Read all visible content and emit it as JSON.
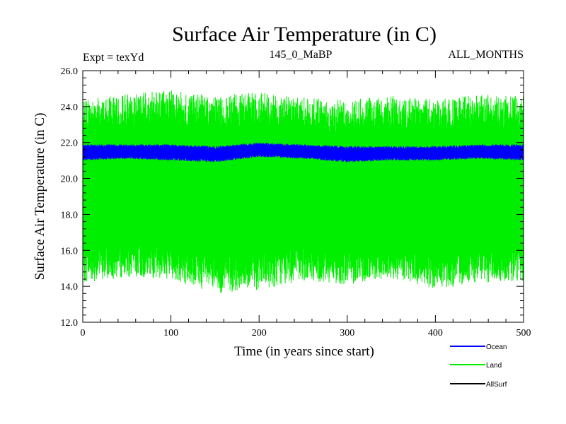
{
  "chart_data": {
    "type": "line",
    "title": "Surface Air Temperature (in C)",
    "header_left": "Expt = texYd",
    "header_center": "145_0_MaBP",
    "header_right": "ALL_MONTHS",
    "xlabel": "Time (in years since start)",
    "ylabel": "Surface Air Temperature (in C)",
    "xlim": [
      0,
      500
    ],
    "ylim": [
      12.0,
      26.0
    ],
    "x_ticks": [
      "0",
      "100",
      "200",
      "300",
      "400",
      "500"
    ],
    "y_ticks": [
      "12.0",
      "14.0",
      "16.0",
      "18.0",
      "20.0",
      "22.0",
      "24.0",
      "26.0"
    ],
    "legend_position": "bottom-right",
    "series": [
      {
        "name": "Ocean",
        "color": "#0000ff",
        "mean": 21.5,
        "amplitude_min": 21.0,
        "amplitude_max": 22.0,
        "x": [
          0,
          50,
          100,
          150,
          200,
          250,
          300,
          350,
          400,
          450,
          500
        ],
        "min": [
          21.0,
          21.1,
          21.0,
          20.9,
          21.2,
          21.1,
          20.9,
          21.0,
          21.0,
          21.1,
          21.0
        ],
        "max": [
          21.9,
          21.9,
          21.9,
          21.8,
          22.0,
          21.9,
          21.8,
          21.8,
          21.8,
          21.9,
          21.9
        ]
      },
      {
        "name": "Land",
        "color": "#00ee00",
        "mean": 19.5,
        "x": [
          0,
          50,
          100,
          150,
          200,
          250,
          300,
          350,
          400,
          450,
          500
        ],
        "min": [
          14.2,
          14.5,
          14.4,
          13.6,
          13.8,
          14.3,
          14.1,
          14.4,
          13.8,
          14.2,
          14.3
        ],
        "max": [
          24.4,
          24.7,
          24.9,
          24.6,
          24.8,
          24.5,
          24.4,
          24.6,
          24.4,
          24.7,
          24.6
        ]
      },
      {
        "name": "AllSurf",
        "color": "#000000"
      }
    ]
  }
}
